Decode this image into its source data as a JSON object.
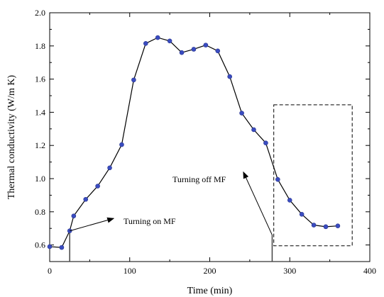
{
  "chart_data": {
    "type": "line",
    "xlabel": "Time (min)",
    "ylabel": "Thermal conductivity (W/m K)",
    "xlim": [
      0,
      400
    ],
    "ylim": [
      0.5,
      2.0
    ],
    "xticks": [
      0,
      100,
      200,
      300,
      400
    ],
    "yticks": [
      0.6,
      0.8,
      1.0,
      1.2,
      1.4,
      1.6,
      1.8,
      2.0
    ],
    "x_tick_labels": [
      "0",
      "100",
      "200",
      "300",
      "400"
    ],
    "y_tick_labels": [
      "0.6",
      "0.8",
      "1.0",
      "1.2",
      "1.4",
      "1.6",
      "1.8",
      "2.0"
    ],
    "grid": false,
    "series": [
      {
        "x": [
          0,
          15,
          25,
          30,
          45,
          60,
          75,
          90,
          105,
          120,
          135,
          150,
          165,
          180,
          195,
          210,
          225,
          240,
          255,
          270,
          285,
          300,
          315,
          330,
          345,
          360
        ],
        "y": [
          0.59,
          0.585,
          0.685,
          0.775,
          0.875,
          0.955,
          1.065,
          1.205,
          1.595,
          1.815,
          1.85,
          1.83,
          1.76,
          1.78,
          1.805,
          1.77,
          1.615,
          1.395,
          1.295,
          1.215,
          0.995,
          0.87,
          0.785,
          0.72,
          0.71,
          0.715
        ],
        "color": "#3a4cc0"
      }
    ],
    "markers": {
      "mf_on_x": 25,
      "mf_off_x": 278
    },
    "annotations": [
      {
        "text": "Turning on MF",
        "tail": [
          25,
          0.685
        ],
        "head": [
          80,
          0.76
        ]
      },
      {
        "text": "Turning off MF",
        "tail": [
          278,
          0.66
        ],
        "head": [
          242,
          1.04
        ]
      }
    ],
    "highlight_box": {
      "x0": 280,
      "x1": 378,
      "y0": 0.595,
      "y1": 1.445
    }
  }
}
